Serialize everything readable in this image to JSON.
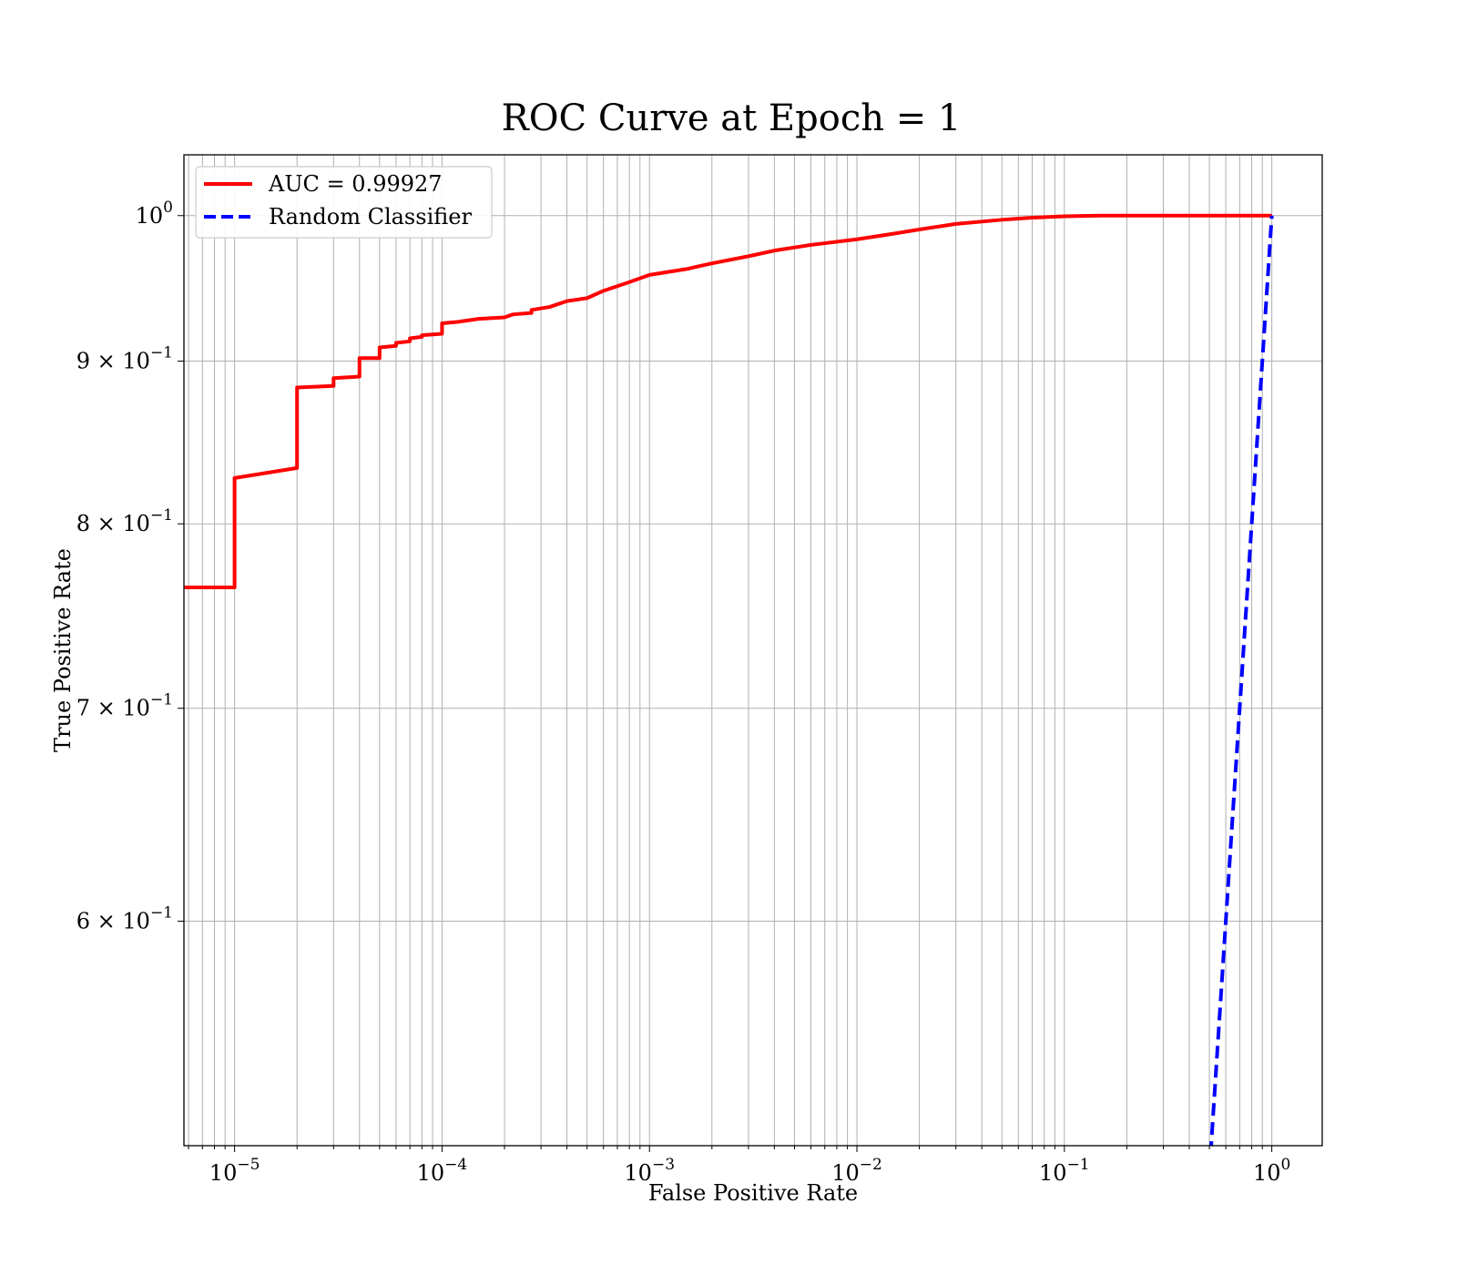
{
  "chart_data": {
    "type": "line",
    "title": "ROC Curve at Epoch = 1",
    "xlabel": "False Positive Rate",
    "ylabel": "True Positive Rate",
    "xscale": "log",
    "yscale": "log",
    "xlim": [
      5.7e-06,
      1.75
    ],
    "ylim": [
      0.51,
      1.045
    ],
    "grid": true,
    "legend_position": "top-left",
    "x_ticks": [
      {
        "value": 1e-05,
        "base": "10",
        "exp": "−5"
      },
      {
        "value": 0.0001,
        "base": "10",
        "exp": "−4"
      },
      {
        "value": 0.001,
        "base": "10",
        "exp": "−3"
      },
      {
        "value": 0.01,
        "base": "10",
        "exp": "−2"
      },
      {
        "value": 0.1,
        "base": "10",
        "exp": "−1"
      },
      {
        "value": 1,
        "base": "10",
        "exp": "0"
      }
    ],
    "y_ticks": [
      {
        "value": 1.0,
        "base": "10",
        "exp": "0"
      },
      {
        "value": 0.9,
        "base": "9 × 10",
        "exp": "−1"
      },
      {
        "value": 0.8,
        "base": "8 × 10",
        "exp": "−1"
      },
      {
        "value": 0.7,
        "base": "7 × 10",
        "exp": "−1"
      },
      {
        "value": 0.6,
        "base": "6 × 10",
        "exp": "−1"
      }
    ],
    "series": [
      {
        "name": "AUC = 0.99927",
        "color": "#ff0000",
        "style": "solid",
        "points": [
          [
            5.7e-06,
            0.764
          ],
          [
            1e-05,
            0.764
          ],
          [
            1e-05,
            0.827
          ],
          [
            2e-05,
            0.833
          ],
          [
            2e-05,
            0.883
          ],
          [
            3e-05,
            0.884
          ],
          [
            3e-05,
            0.889
          ],
          [
            4e-05,
            0.89
          ],
          [
            4e-05,
            0.902
          ],
          [
            5e-05,
            0.902
          ],
          [
            5e-05,
            0.909
          ],
          [
            6e-05,
            0.91
          ],
          [
            6e-05,
            0.912
          ],
          [
            7e-05,
            0.913
          ],
          [
            7e-05,
            0.915
          ],
          [
            8e-05,
            0.916
          ],
          [
            8e-05,
            0.917
          ],
          [
            0.0001,
            0.918
          ],
          [
            0.0001,
            0.925
          ],
          [
            0.00012,
            0.926
          ],
          [
            0.00015,
            0.928
          ],
          [
            0.0002,
            0.929
          ],
          [
            0.00022,
            0.931
          ],
          [
            0.00027,
            0.932
          ],
          [
            0.00027,
            0.934
          ],
          [
            0.00033,
            0.936
          ],
          [
            0.0004,
            0.94
          ],
          [
            0.0005,
            0.942
          ],
          [
            0.0006,
            0.947
          ],
          [
            0.0008,
            0.953
          ],
          [
            0.001,
            0.958
          ],
          [
            0.0015,
            0.962
          ],
          [
            0.002,
            0.966
          ],
          [
            0.003,
            0.971
          ],
          [
            0.004,
            0.975
          ],
          [
            0.006,
            0.979
          ],
          [
            0.01,
            0.983
          ],
          [
            0.015,
            0.987
          ],
          [
            0.02,
            0.99
          ],
          [
            0.03,
            0.994
          ],
          [
            0.05,
            0.997
          ],
          [
            0.07,
            0.9985
          ],
          [
            0.1,
            0.9995
          ],
          [
            0.15,
            1.0
          ],
          [
            1.0,
            1.0
          ]
        ]
      },
      {
        "name": "Random Classifier",
        "color": "#0000ff",
        "style": "dashed",
        "points": [
          [
            0.5,
            0.5
          ],
          [
            0.6,
            0.6
          ],
          [
            0.7,
            0.7
          ],
          [
            0.8,
            0.8
          ],
          [
            0.9,
            0.9
          ],
          [
            1.0,
            1.0
          ]
        ]
      }
    ]
  }
}
